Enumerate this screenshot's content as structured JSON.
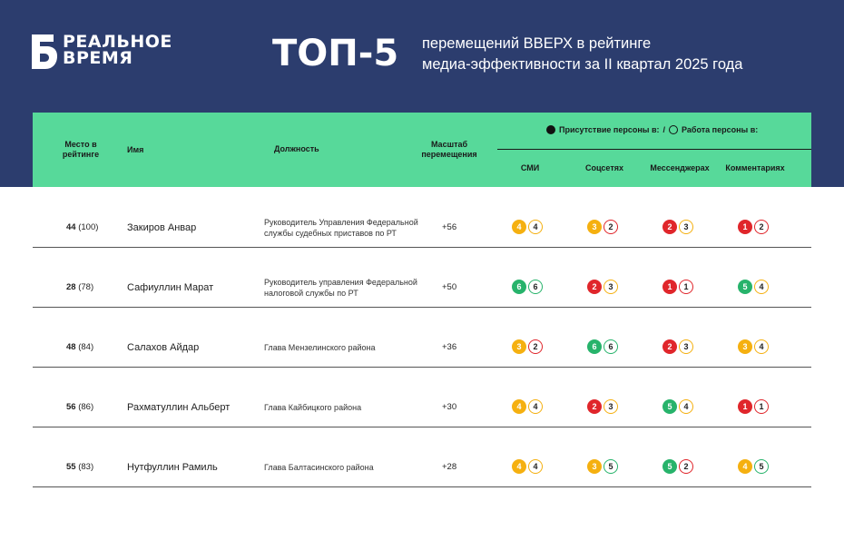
{
  "brand": {
    "line1": "РЕАЛЬНОЕ",
    "line2": "ВРЕМЯ"
  },
  "title": "ТОП-5",
  "subtitle_line1": "перемещений ВВЕРХ в рейтинге",
  "subtitle_line2": "медиа-эффективности за II квартал 2025 года",
  "colors": {
    "banner": "#2c3d6e",
    "header": "#57d99a",
    "orange": "#f5b010",
    "red": "#e0262b",
    "green": "#27b36b"
  },
  "table_header": {
    "place": "Место в рейтинге",
    "name": "Имя",
    "position": "Должность",
    "shift": "Масштаб перемещения",
    "legend_presence": "Присутствие персоны в:",
    "legend_sep": "/",
    "legend_work": "Работа персоны в:",
    "platforms": [
      "СМИ",
      "Соцсетях",
      "Мессенджерах",
      "Комментариях"
    ]
  },
  "rows": [
    {
      "place": "44",
      "prev": "(100)",
      "name": "Закиров Анвар",
      "position": "Руководитель Управления Федеральной службы судебных приставов по РТ",
      "shift": "+56",
      "scores": [
        {
          "a": "4",
          "ac": "orange",
          "b": "4",
          "bc": "orange"
        },
        {
          "a": "3",
          "ac": "orange",
          "b": "2",
          "bc": "red"
        },
        {
          "a": "2",
          "ac": "red",
          "b": "3",
          "bc": "orange"
        },
        {
          "a": "1",
          "ac": "red",
          "b": "2",
          "bc": "red"
        }
      ]
    },
    {
      "place": "28",
      "prev": "(78)",
      "name": "Сафиуллин Марат",
      "position": "Руководитель управления Федеральной налоговой службы по РТ",
      "shift": "+50",
      "scores": [
        {
          "a": "6",
          "ac": "green",
          "b": "6",
          "bc": "green"
        },
        {
          "a": "2",
          "ac": "red",
          "b": "3",
          "bc": "orange"
        },
        {
          "a": "1",
          "ac": "red",
          "b": "1",
          "bc": "red"
        },
        {
          "a": "5",
          "ac": "green",
          "b": "4",
          "bc": "orange"
        }
      ]
    },
    {
      "place": "48",
      "prev": "(84)",
      "name": "Салахов Айдар",
      "position": "Глава Мензелинского района",
      "shift": "+36",
      "scores": [
        {
          "a": "3",
          "ac": "orange",
          "b": "2",
          "bc": "red"
        },
        {
          "a": "6",
          "ac": "green",
          "b": "6",
          "bc": "green"
        },
        {
          "a": "2",
          "ac": "red",
          "b": "3",
          "bc": "orange"
        },
        {
          "a": "3",
          "ac": "orange",
          "b": "4",
          "bc": "orange"
        }
      ]
    },
    {
      "place": "56",
      "prev": "(86)",
      "name": "Рахматуллин Альберт",
      "position": "Глава Кайбицкого района",
      "shift": "+30",
      "scores": [
        {
          "a": "4",
          "ac": "orange",
          "b": "4",
          "bc": "orange"
        },
        {
          "a": "2",
          "ac": "red",
          "b": "3",
          "bc": "orange"
        },
        {
          "a": "5",
          "ac": "green",
          "b": "4",
          "bc": "orange"
        },
        {
          "a": "1",
          "ac": "red",
          "b": "1",
          "bc": "red"
        }
      ]
    },
    {
      "place": "55",
      "prev": "(83)",
      "name": "Нутфуллин Рамиль",
      "position": "Глава Балтасинского района",
      "shift": "+28",
      "scores": [
        {
          "a": "4",
          "ac": "orange",
          "b": "4",
          "bc": "orange"
        },
        {
          "a": "3",
          "ac": "orange",
          "b": "5",
          "bc": "green"
        },
        {
          "a": "5",
          "ac": "green",
          "b": "2",
          "bc": "red"
        },
        {
          "a": "4",
          "ac": "orange",
          "b": "5",
          "bc": "green"
        }
      ]
    }
  ]
}
